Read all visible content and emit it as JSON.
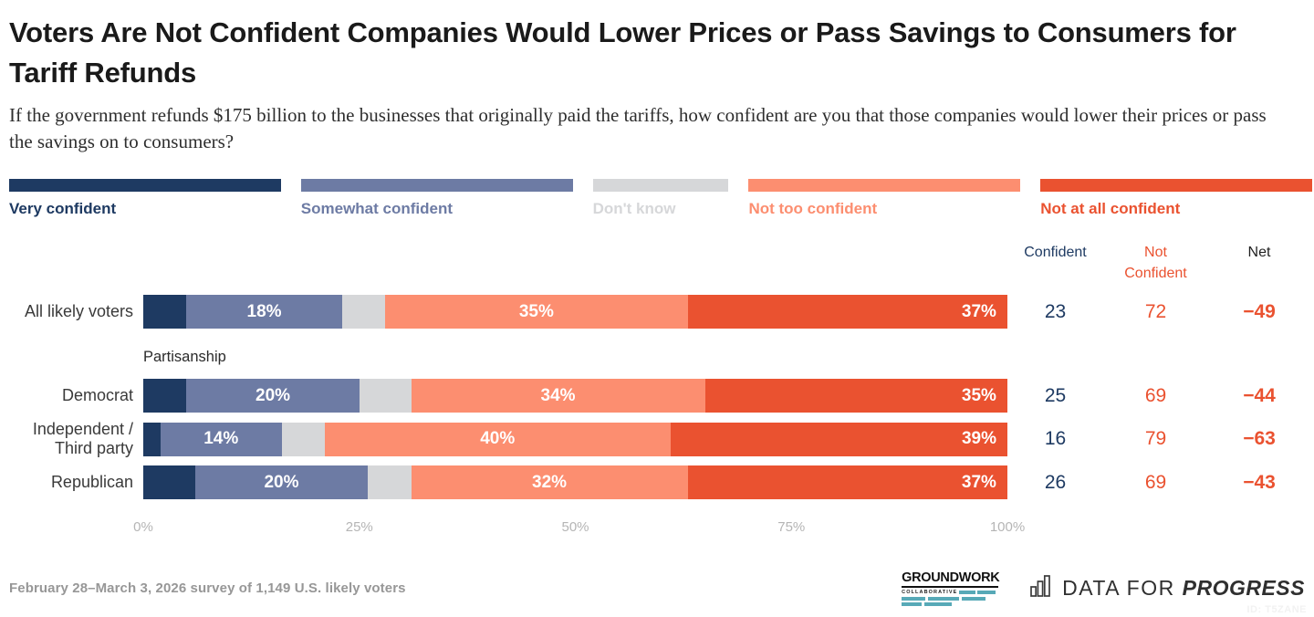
{
  "header": {
    "title": "Voters Are Not Confident Companies Would Lower Prices or Pass Savings to Consumers for Tariff Refunds",
    "subtitle": "If the government refunds $175 billion to the businesses that originally paid the tariffs, how confident are you that those companies would lower their prices or pass the savings on to consumers?"
  },
  "colors": {
    "very_confident": "#1e3a62",
    "somewhat_confident": "#6d7ba4",
    "dont_know": "#d6d7d9",
    "not_too_confident": "#fc8e70",
    "not_at_all_confident": "#ea5230",
    "net_header": "#1f1f1f",
    "teal": "#57a9b7"
  },
  "legend": {
    "items": [
      {
        "label": "Very confident",
        "color": "#1e3a62",
        "flex": 2
      },
      {
        "label": "Somewhat confident",
        "color": "#6d7ba4",
        "flex": 2
      },
      {
        "label": "Don't know",
        "color": "#d6d7d9",
        "flex": 1
      },
      {
        "label": "Not too confident",
        "color": "#fc8e70",
        "flex": 2
      },
      {
        "label": "Not at all confident",
        "color": "#ea5230",
        "flex": 2
      }
    ]
  },
  "chart_data": {
    "type": "bar",
    "stacked": true,
    "orientation": "horizontal",
    "x_ticks": [
      "0%",
      "25%",
      "50%",
      "75%",
      "100%"
    ],
    "xlim": [
      0,
      100
    ],
    "label_min_value": 10,
    "section_label": "Partisanship",
    "section_before_index": 1,
    "categories": [
      "All likely voters",
      "Democrat",
      "Independent / Third party",
      "Republican"
    ],
    "series": [
      {
        "name": "Very confident",
        "color": "#1e3a62",
        "values": [
          5,
          5,
          2,
          6
        ]
      },
      {
        "name": "Somewhat confident",
        "color": "#6d7ba4",
        "values": [
          18,
          20,
          14,
          20
        ]
      },
      {
        "name": "Don't know",
        "color": "#d6d7d9",
        "values": [
          5,
          6,
          5,
          5
        ]
      },
      {
        "name": "Not too confident",
        "color": "#fc8e70",
        "values": [
          35,
          34,
          40,
          32
        ]
      },
      {
        "name": "Not at all confident",
        "color": "#ea5230",
        "values": [
          37,
          35,
          39,
          37
        ]
      }
    ],
    "summary": {
      "headers": [
        "Confident",
        "Not Confident",
        "Net"
      ],
      "header_colors": [
        "#1e3a62",
        "#ea5230",
        "#1f1f1f"
      ],
      "rows": [
        {
          "confident": "23",
          "not_confident": "72",
          "net": "−49"
        },
        {
          "confident": "25",
          "not_confident": "69",
          "net": "−44"
        },
        {
          "confident": "16",
          "not_confident": "79",
          "net": "−63"
        },
        {
          "confident": "26",
          "not_confident": "69",
          "net": "−43"
        }
      ]
    }
  },
  "footer": {
    "source": "February 28–March 3, 2026 survey of 1,149 U.S. likely voters",
    "groundwork": {
      "name": "GROUNDWORK",
      "sub": "COLLABORATIVE"
    },
    "dfp": {
      "light": "DATA FOR ",
      "bold": "PROGRESS",
      "icon": "bar-chart-icon"
    },
    "watermark": "ID: T5ZANE"
  }
}
